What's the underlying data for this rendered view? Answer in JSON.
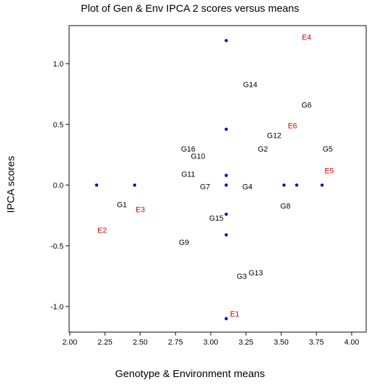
{
  "chart_data": {
    "type": "scatter",
    "title": "Plot of Gen & Env IPCA 2 scores versus means",
    "xlabel": "Genotype & Environment means",
    "ylabel": "IPCA scores",
    "xlim": [
      2.0,
      4.0
    ],
    "ylim": [
      -1.25,
      1.25
    ],
    "x_ticks": [
      "2.00",
      "2.25",
      "2.50",
      "2.75",
      "3.00",
      "3.25",
      "3.50",
      "3.75",
      "4.00"
    ],
    "y_ticks": [
      {
        "v": 1.0,
        "label": "1.0"
      },
      {
        "v": 0.5,
        "label": "0.5"
      },
      {
        "v": 0.0,
        "label": "0.0"
      },
      {
        "v": -0.5,
        "label": "-0.5"
      },
      {
        "v": -1.0,
        "label": "-1.0"
      }
    ],
    "grid": false,
    "marker_color": "#0000cc",
    "genotype_color": "#000000",
    "environment_color": "#e00000",
    "markers": [
      {
        "x": 3.11,
        "y": 1.19
      },
      {
        "x": 3.11,
        "y": 0.46
      },
      {
        "x": 3.11,
        "y": 0.08
      },
      {
        "x": 3.11,
        "y": 0.0
      },
      {
        "x": 3.11,
        "y": -0.24
      },
      {
        "x": 3.11,
        "y": -0.41
      },
      {
        "x": 3.11,
        "y": -1.1
      },
      {
        "x": 2.19,
        "y": 0.0
      },
      {
        "x": 2.46,
        "y": 0.0
      },
      {
        "x": 3.52,
        "y": 0.0
      },
      {
        "x": 3.61,
        "y": 0.0
      },
      {
        "x": 3.79,
        "y": 0.0
      }
    ],
    "genotypes": [
      {
        "label": "G14",
        "x": 3.28,
        "y": 0.83
      },
      {
        "label": "G6",
        "x": 3.68,
        "y": 0.66
      },
      {
        "label": "G12",
        "x": 3.45,
        "y": 0.41
      },
      {
        "label": "G2",
        "x": 3.37,
        "y": 0.3
      },
      {
        "label": "G5",
        "x": 3.83,
        "y": 0.3
      },
      {
        "label": "G16",
        "x": 2.84,
        "y": 0.3
      },
      {
        "label": "G10",
        "x": 2.91,
        "y": 0.24
      },
      {
        "label": "G11",
        "x": 2.84,
        "y": 0.09
      },
      {
        "label": "G7",
        "x": 2.96,
        "y": -0.01
      },
      {
        "label": "G4",
        "x": 3.26,
        "y": -0.01
      },
      {
        "label": "G1",
        "x": 2.37,
        "y": -0.16
      },
      {
        "label": "G8",
        "x": 3.53,
        "y": -0.17
      },
      {
        "label": "G15",
        "x": 3.04,
        "y": -0.27
      },
      {
        "label": "G9",
        "x": 2.81,
        "y": -0.47
      },
      {
        "label": "G3",
        "x": 3.22,
        "y": -0.75
      },
      {
        "label": "G13",
        "x": 3.32,
        "y": -0.72
      }
    ],
    "environments": [
      {
        "label": "E4",
        "x": 3.68,
        "y": 1.22
      },
      {
        "label": "E6",
        "x": 3.58,
        "y": 0.49
      },
      {
        "label": "E5",
        "x": 3.84,
        "y": 0.12
      },
      {
        "label": "E3",
        "x": 2.5,
        "y": -0.2
      },
      {
        "label": "E2",
        "x": 2.23,
        "y": -0.37
      },
      {
        "label": "E1",
        "x": 3.17,
        "y": -1.06
      }
    ]
  }
}
